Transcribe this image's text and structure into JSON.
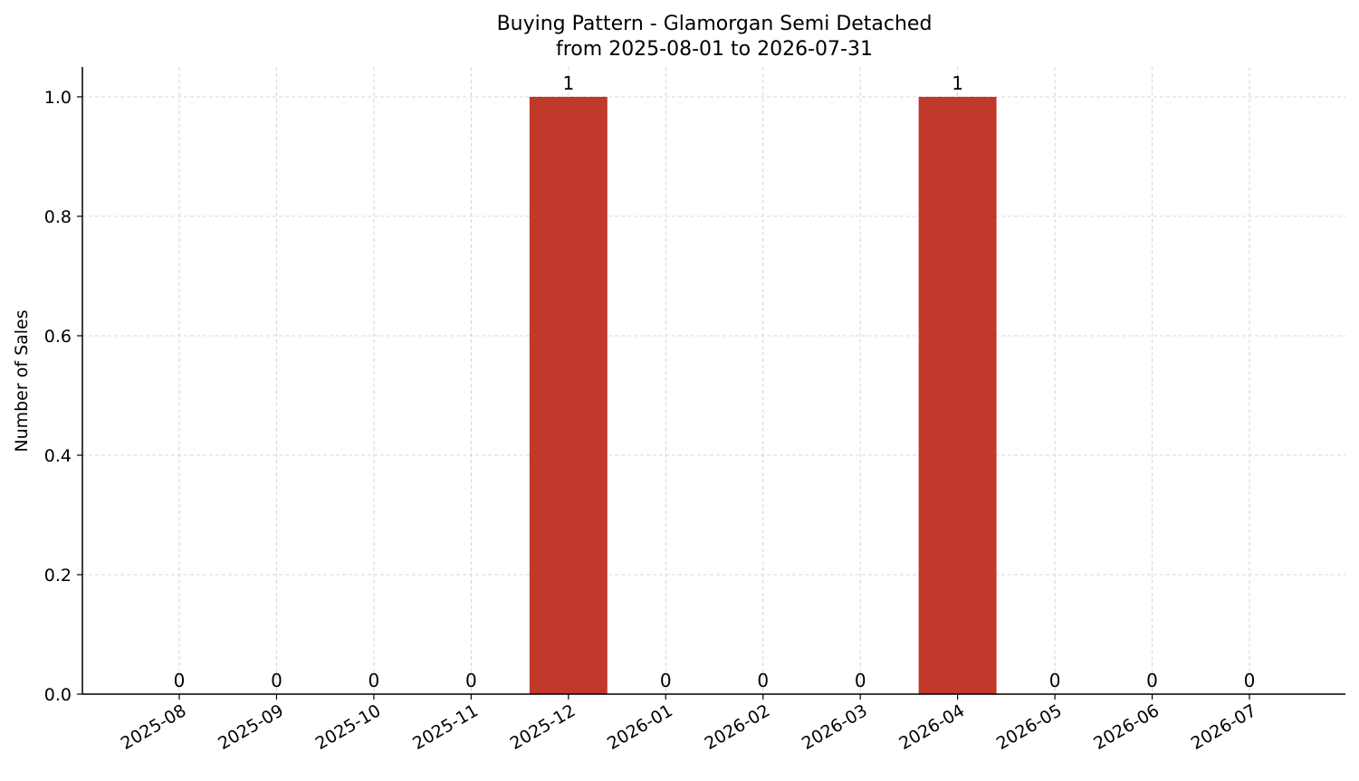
{
  "chart_data": {
    "type": "bar",
    "title_line1": "Buying Pattern - Glamorgan Semi Detached",
    "title_line2": "from 2025-08-01 to 2026-07-31",
    "xlabel": "",
    "ylabel": "Number of Sales",
    "categories": [
      "2025-08",
      "2025-09",
      "2025-10",
      "2025-11",
      "2025-12",
      "2026-01",
      "2026-02",
      "2026-03",
      "2026-04",
      "2026-05",
      "2026-06",
      "2026-07"
    ],
    "values": [
      0,
      0,
      0,
      0,
      1,
      0,
      0,
      0,
      1,
      0,
      0,
      0
    ],
    "data_labels": [
      "0",
      "0",
      "0",
      "0",
      "1",
      "0",
      "0",
      "0",
      "1",
      "0",
      "0",
      "0"
    ],
    "ylim": [
      0,
      1.05
    ],
    "yticks": [
      0.0,
      0.2,
      0.4,
      0.6,
      0.8,
      1.0
    ],
    "ytick_labels": [
      "0.0",
      "0.2",
      "0.4",
      "0.6",
      "0.8",
      "1.0"
    ],
    "grid": true,
    "bar_color": "#c0392b",
    "legend": "none"
  }
}
